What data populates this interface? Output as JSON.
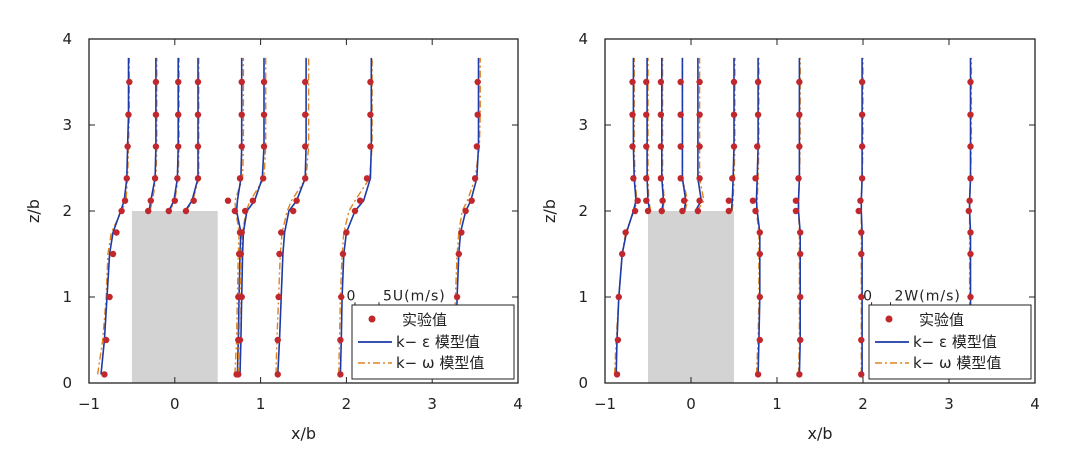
{
  "colors": {
    "experiment": "#c0282d",
    "k_epsilon": "#1c3aa8",
    "k_omega": "#e0821e",
    "building": "#d3d3d3"
  },
  "chart_data": [
    {
      "type": "line",
      "xlabel": "x/b",
      "ylabel": "z/b",
      "xlim": [
        -1,
        4
      ],
      "ylim": [
        0,
        4
      ],
      "xticks": [
        -1,
        0,
        1,
        2,
        3,
        4
      ],
      "yticks": [
        0,
        1,
        2,
        3,
        4
      ],
      "xtick_labels": [
        "−1",
        "0",
        "1",
        "2",
        "3",
        "4"
      ],
      "ytick_labels": [
        "0",
        "1",
        "2",
        "3",
        "4"
      ],
      "scale_bar": {
        "label_left": "0",
        "label_right": "5U(m/s)",
        "x": 2.1,
        "y": 1.02,
        "length": 0.28
      },
      "building": {
        "x0": -0.5,
        "x1": 0.5,
        "height": 2.0
      },
      "legend": {
        "position": "bottom-right",
        "entries": [
          "实验值",
          "k− ε 模型值",
          "k− ω 模型值"
        ]
      },
      "z_levels": [
        0.1,
        0.5,
        1.0,
        1.5,
        1.75,
        2.0,
        2.12,
        2.38,
        2.75,
        3.12,
        3.5
      ],
      "profiles": [
        {
          "baseline": -0.7,
          "experiment": [
            -0.82,
            -0.8,
            -0.76,
            -0.72,
            -0.68,
            -0.62,
            -0.58,
            -0.56,
            -0.55,
            -0.54,
            -0.53
          ],
          "k_epsilon": [
            -0.86,
            -0.82,
            -0.79,
            -0.76,
            -0.72,
            -0.63,
            -0.59,
            -0.56,
            -0.55,
            -0.54,
            -0.54
          ],
          "k_omega": [
            -0.9,
            -0.84,
            -0.8,
            -0.78,
            -0.74,
            -0.62,
            -0.57,
            -0.55,
            -0.54,
            -0.53,
            -0.53
          ]
        },
        {
          "baseline": -0.35,
          "experiment": [
            null,
            null,
            null,
            null,
            null,
            -0.31,
            -0.28,
            -0.23,
            -0.22,
            -0.22,
            -0.22
          ],
          "k_epsilon": [
            null,
            null,
            null,
            null,
            null,
            -0.3,
            -0.28,
            -0.23,
            -0.22,
            -0.22,
            -0.22
          ],
          "k_omega": [
            null,
            null,
            null,
            null,
            null,
            -0.29,
            -0.26,
            -0.22,
            -0.21,
            -0.21,
            -0.21
          ]
        },
        {
          "baseline": -0.08,
          "experiment": [
            null,
            null,
            null,
            null,
            null,
            -0.07,
            0.0,
            0.03,
            0.04,
            0.04,
            0.04
          ],
          "k_epsilon": [
            null,
            null,
            null,
            null,
            null,
            -0.07,
            -0.01,
            0.03,
            0.04,
            0.04,
            0.04
          ],
          "k_omega": [
            null,
            null,
            null,
            null,
            null,
            -0.06,
            0.0,
            0.04,
            0.05,
            0.05,
            0.05
          ]
        },
        {
          "baseline": 0.12,
          "experiment": [
            null,
            null,
            null,
            null,
            null,
            0.13,
            0.22,
            0.27,
            0.27,
            0.27,
            0.27
          ],
          "k_epsilon": [
            null,
            null,
            null,
            null,
            null,
            0.12,
            0.2,
            0.27,
            0.27,
            0.27,
            0.27
          ],
          "k_omega": [
            null,
            null,
            null,
            null,
            null,
            0.13,
            0.21,
            0.28,
            0.28,
            0.28,
            0.28
          ]
        },
        {
          "baseline": 0.7,
          "experiment": [
            0.72,
            0.74,
            0.74,
            0.75,
            0.76,
            0.7,
            0.62,
            0.76,
            0.78,
            0.78,
            0.78
          ],
          "k_epsilon": [
            0.73,
            0.74,
            0.75,
            0.76,
            0.77,
            0.72,
            0.73,
            0.77,
            0.78,
            0.78,
            0.78
          ],
          "k_omega": [
            0.7,
            0.72,
            0.73,
            0.74,
            0.75,
            0.71,
            0.7,
            0.79,
            0.8,
            0.8,
            0.8
          ]
        },
        {
          "baseline": 1.0,
          "experiment": [
            0.74,
            0.76,
            0.78,
            0.77,
            0.78,
            0.82,
            0.91,
            1.03,
            1.04,
            1.04,
            1.04
          ],
          "k_epsilon": [
            0.76,
            0.77,
            0.78,
            0.79,
            0.8,
            0.84,
            0.93,
            1.02,
            1.04,
            1.04,
            1.04
          ],
          "k_omega": [
            0.74,
            0.75,
            0.76,
            0.77,
            0.79,
            0.83,
            0.88,
            1.04,
            1.06,
            1.06,
            1.06
          ]
        },
        {
          "baseline": 1.5,
          "experiment": [
            1.2,
            1.2,
            1.21,
            1.22,
            1.24,
            1.38,
            1.42,
            1.52,
            1.52,
            1.52,
            1.52
          ],
          "k_epsilon": [
            1.2,
            1.22,
            1.24,
            1.26,
            1.28,
            1.33,
            1.42,
            1.52,
            1.53,
            1.53,
            1.53
          ],
          "k_omega": [
            1.18,
            1.19,
            1.21,
            1.23,
            1.25,
            1.31,
            1.36,
            1.53,
            1.56,
            1.56,
            1.56
          ]
        },
        {
          "baseline": 2.2,
          "experiment": [
            1.93,
            1.93,
            1.94,
            1.96,
            2.0,
            2.1,
            2.16,
            2.24,
            2.28,
            2.28,
            2.28
          ],
          "k_epsilon": [
            1.93,
            1.94,
            1.95,
            1.97,
            2.0,
            2.1,
            2.2,
            2.28,
            2.29,
            2.29,
            2.29
          ],
          "k_omega": [
            1.91,
            1.92,
            1.93,
            1.95,
            1.97,
            2.03,
            2.1,
            2.27,
            2.3,
            2.3,
            2.3
          ]
        },
        {
          "baseline": 3.5,
          "experiment": [
            3.28,
            3.28,
            3.29,
            3.31,
            3.34,
            3.39,
            3.46,
            3.5,
            3.52,
            3.53,
            3.53
          ],
          "k_epsilon": [
            3.27,
            3.28,
            3.29,
            3.31,
            3.33,
            3.39,
            3.45,
            3.52,
            3.54,
            3.54,
            3.54
          ],
          "k_omega": [
            3.25,
            3.26,
            3.27,
            3.29,
            3.31,
            3.35,
            3.41,
            3.5,
            3.55,
            3.56,
            3.56
          ]
        }
      ]
    },
    {
      "type": "line",
      "xlabel": "x/b",
      "ylabel": "z/b",
      "xlim": [
        -1,
        4
      ],
      "ylim": [
        0,
        4
      ],
      "xticks": [
        -1,
        0,
        1,
        2,
        3,
        4
      ],
      "yticks": [
        0,
        1,
        2,
        3,
        4
      ],
      "xtick_labels": [
        "−1",
        "0",
        "1",
        "2",
        "3",
        "4"
      ],
      "ytick_labels": [
        "0",
        "1",
        "2",
        "3",
        "4"
      ],
      "scale_bar": {
        "label_left": "0",
        "label_right": "2W(m/s)",
        "x": 2.1,
        "y": 1.02,
        "length": 0.22
      },
      "building": {
        "x0": -0.5,
        "x1": 0.5,
        "height": 2.0
      },
      "legend": {
        "position": "bottom-right",
        "entries": [
          "实验值",
          "k− ε 模型值",
          "k− ω 模型值"
        ]
      },
      "z_levels": [
        0.1,
        0.5,
        1.0,
        1.5,
        1.75,
        2.0,
        2.12,
        2.38,
        2.75,
        3.12,
        3.5
      ],
      "profiles": [
        {
          "baseline": -0.85,
          "experiment": [
            -0.86,
            -0.85,
            -0.84,
            -0.8,
            -0.76,
            -0.65,
            -0.62,
            -0.67,
            -0.68,
            -0.68,
            -0.68
          ],
          "k_epsilon": [
            -0.87,
            -0.86,
            -0.84,
            -0.8,
            -0.75,
            -0.67,
            -0.64,
            -0.66,
            -0.67,
            -0.67,
            -0.67
          ],
          "k_omega": [
            -0.89,
            -0.87,
            -0.84,
            -0.8,
            -0.76,
            -0.66,
            -0.63,
            -0.65,
            -0.66,
            -0.66,
            -0.66
          ]
        },
        {
          "baseline": -0.4,
          "experiment": [
            null,
            null,
            null,
            null,
            null,
            -0.5,
            -0.52,
            -0.52,
            -0.52,
            -0.52,
            -0.52
          ],
          "k_epsilon": [
            null,
            null,
            null,
            null,
            null,
            -0.48,
            -0.5,
            -0.51,
            -0.51,
            -0.51,
            -0.51
          ],
          "k_omega": [
            null,
            null,
            null,
            null,
            null,
            -0.47,
            -0.49,
            -0.5,
            -0.5,
            -0.5,
            -0.5
          ]
        },
        {
          "baseline": -0.2,
          "experiment": [
            null,
            null,
            null,
            null,
            null,
            -0.34,
            -0.33,
            -0.35,
            -0.35,
            -0.35,
            -0.35
          ],
          "k_epsilon": [
            null,
            null,
            null,
            null,
            null,
            -0.34,
            -0.32,
            -0.34,
            -0.34,
            -0.34,
            -0.34
          ],
          "k_omega": [
            null,
            null,
            null,
            null,
            null,
            -0.33,
            -0.31,
            -0.33,
            -0.33,
            -0.33,
            -0.33
          ]
        },
        {
          "baseline": 0.0,
          "experiment": [
            null,
            null,
            null,
            null,
            null,
            -0.1,
            -0.08,
            -0.12,
            -0.12,
            -0.12,
            -0.12
          ],
          "k_epsilon": [
            null,
            null,
            null,
            null,
            null,
            -0.08,
            -0.06,
            -0.1,
            -0.1,
            -0.1,
            -0.1
          ],
          "k_omega": [
            null,
            null,
            null,
            null,
            null,
            -0.07,
            -0.04,
            -0.1,
            -0.1,
            -0.1,
            -0.1
          ]
        },
        {
          "baseline": 0.2,
          "experiment": [
            null,
            null,
            null,
            null,
            null,
            0.08,
            0.1,
            0.1,
            0.1,
            0.1,
            0.1
          ],
          "k_epsilon": [
            null,
            null,
            null,
            null,
            null,
            0.05,
            0.12,
            0.08,
            0.08,
            0.08,
            0.08
          ],
          "k_omega": [
            null,
            null,
            null,
            null,
            null,
            0.07,
            0.15,
            0.1,
            0.1,
            0.1,
            0.1
          ]
        },
        {
          "baseline": 0.5,
          "experiment": [
            null,
            null,
            null,
            null,
            null,
            0.44,
            0.44,
            0.48,
            0.5,
            0.5,
            0.5
          ],
          "k_epsilon": [
            null,
            null,
            null,
            null,
            null,
            0.47,
            0.48,
            0.49,
            0.5,
            0.5,
            0.5
          ],
          "k_omega": [
            null,
            null,
            null,
            null,
            null,
            0.48,
            0.49,
            0.5,
            0.51,
            0.51,
            0.51
          ]
        },
        {
          "baseline": 0.8,
          "experiment": [
            0.78,
            0.8,
            0.8,
            0.8,
            0.8,
            0.75,
            0.72,
            0.75,
            0.77,
            0.78,
            0.78
          ],
          "k_epsilon": [
            0.78,
            0.79,
            0.8,
            0.8,
            0.8,
            0.77,
            0.76,
            0.77,
            0.78,
            0.78,
            0.78
          ],
          "k_omega": [
            0.76,
            0.78,
            0.79,
            0.79,
            0.79,
            0.76,
            0.77,
            0.78,
            0.79,
            0.79,
            0.79
          ]
        },
        {
          "baseline": 1.25,
          "experiment": [
            1.26,
            1.27,
            1.27,
            1.27,
            1.27,
            1.22,
            1.22,
            1.25,
            1.26,
            1.26,
            1.26
          ],
          "k_epsilon": [
            1.26,
            1.27,
            1.27,
            1.27,
            1.27,
            1.25,
            1.25,
            1.26,
            1.26,
            1.26,
            1.26
          ],
          "k_omega": [
            1.25,
            1.26,
            1.26,
            1.26,
            1.26,
            1.25,
            1.25,
            1.26,
            1.27,
            1.27,
            1.27
          ]
        },
        {
          "baseline": 2.0,
          "experiment": [
            1.98,
            1.98,
            1.98,
            1.98,
            1.98,
            1.95,
            1.97,
            1.99,
            1.99,
            1.99,
            1.99
          ],
          "k_epsilon": [
            1.99,
            1.99,
            1.99,
            1.99,
            1.99,
            1.98,
            1.98,
            1.99,
            1.99,
            1.99,
            1.99
          ],
          "k_omega": [
            1.98,
            1.98,
            1.98,
            1.98,
            1.98,
            1.98,
            1.98,
            1.99,
            2.0,
            2.0,
            2.0
          ]
        },
        {
          "baseline": 3.25,
          "experiment": [
            3.25,
            3.25,
            3.25,
            3.25,
            3.25,
            3.23,
            3.24,
            3.25,
            3.25,
            3.25,
            3.25
          ],
          "k_epsilon": [
            3.25,
            3.25,
            3.25,
            3.25,
            3.25,
            3.24,
            3.24,
            3.25,
            3.25,
            3.25,
            3.25
          ],
          "k_omega": [
            3.24,
            3.24,
            3.24,
            3.24,
            3.24,
            3.24,
            3.24,
            3.25,
            3.26,
            3.26,
            3.26
          ]
        }
      ]
    }
  ]
}
